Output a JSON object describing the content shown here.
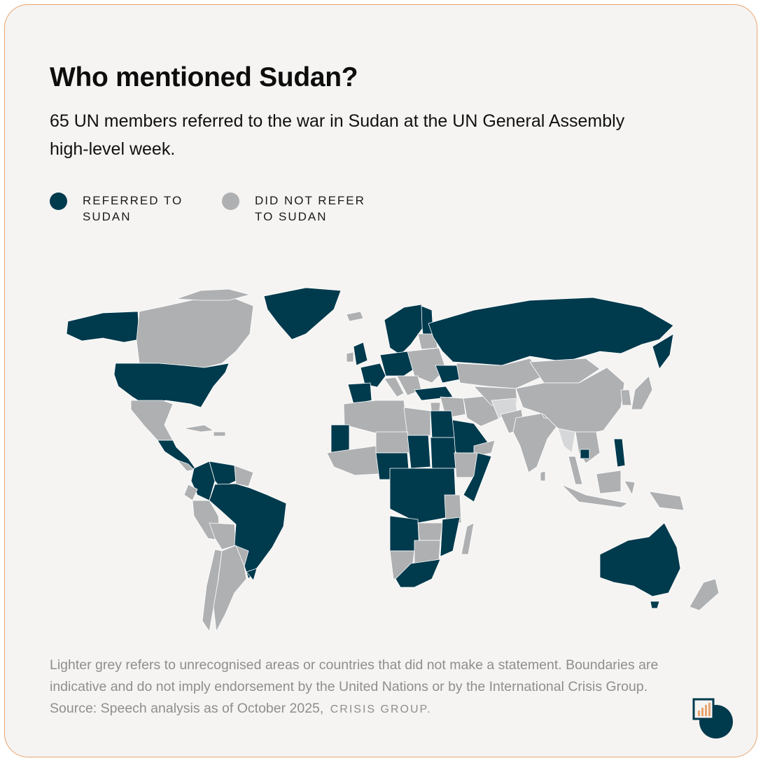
{
  "header": {
    "title": "Who mentioned Sudan?",
    "subtitle": "65 UN members referred to the war in Sudan at the UN General Assembly high-level week."
  },
  "legend": [
    {
      "label": "REFERRED TO SUDAN",
      "color": "#003a4d"
    },
    {
      "label": "DID NOT REFER TO SUDAN",
      "color": "#aeb0b2"
    }
  ],
  "colors": {
    "referred": "#003a4d",
    "not_referred": "#aeb0b2",
    "unrecognised": "#d6d7d8",
    "background": "#f5f4f2",
    "border": "#e8a46e"
  },
  "footnote": {
    "text": "Lighter grey refers to unrecognised areas or countries that did not make a statement. Boundaries are indicative and do not imply endorsement by the United Nations or by the International Crisis Group. Source: Speech analysis as of October 2025,",
    "brand": "CRISIS GROUP."
  }
}
